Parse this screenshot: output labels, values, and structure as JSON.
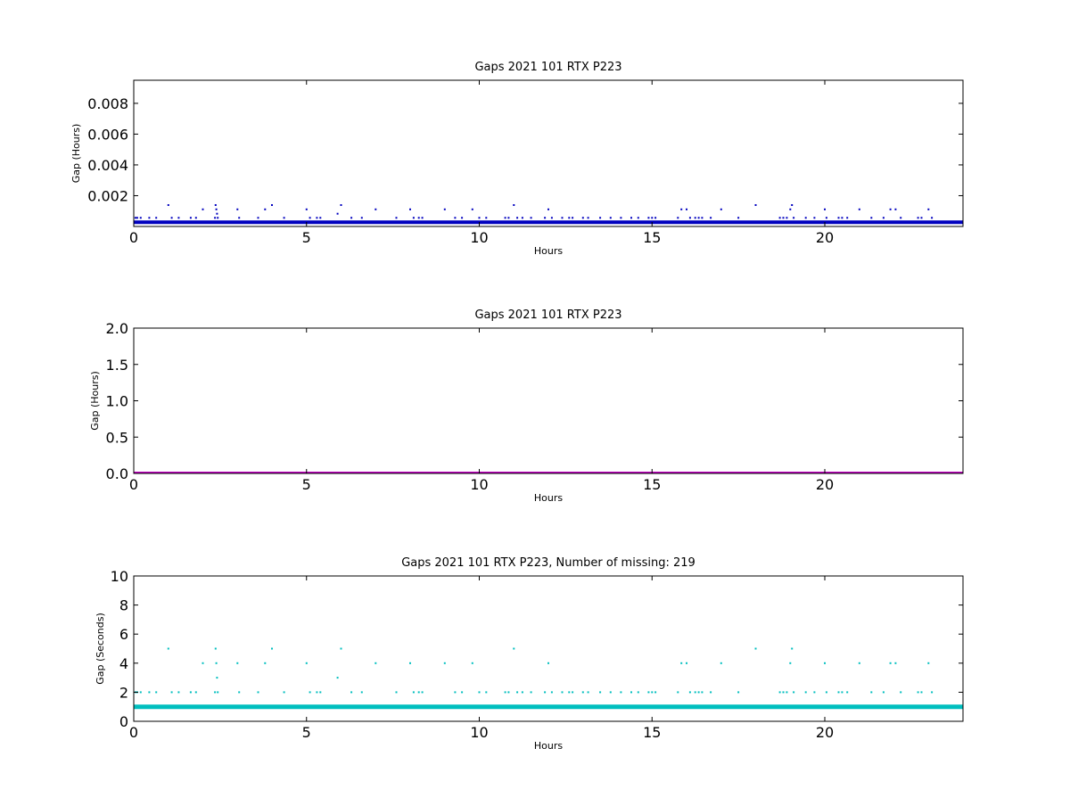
{
  "figure": {
    "background": "#ffffff"
  },
  "chart_data": [
    {
      "type": "scatter",
      "title": "Gaps 2021 101 RTX  P223",
      "xlabel": "Hours",
      "ylabel": "Gap (Hours)",
      "xlim": [
        0,
        24
      ],
      "ylim": [
        0,
        0.0095
      ],
      "xticks": [
        0,
        5,
        10,
        15,
        20
      ],
      "xtick_labels": [
        "0",
        "5",
        "10",
        "15",
        "20"
      ],
      "yticks": [
        0.002,
        0.004,
        0.006,
        0.008
      ],
      "ytick_labels": [
        "0.002",
        "0.004",
        "0.006",
        "0.008"
      ],
      "grid": false,
      "color": "#0000bf",
      "baseline": {
        "y": 0.000278,
        "x_range": [
          0,
          24
        ],
        "description": "dense band of regular 1-second gaps"
      },
      "series": [
        {
          "points": [
            [
              0.05,
              0.00056
            ],
            [
              0.1,
              0.00056
            ],
            [
              0.2,
              0.00056
            ],
            [
              0.45,
              0.00056
            ],
            [
              0.65,
              0.00056
            ],
            [
              1.0,
              0.00139
            ],
            [
              1.1,
              0.00056
            ],
            [
              1.3,
              0.00056
            ],
            [
              1.65,
              0.00056
            ],
            [
              1.8,
              0.00056
            ],
            [
              2.0,
              0.00111
            ],
            [
              2.35,
              0.00056
            ],
            [
              2.37,
              0.00139
            ],
            [
              2.39,
              0.00111
            ],
            [
              2.41,
              0.00083
            ],
            [
              2.43,
              0.00056
            ],
            [
              3.0,
              0.00111
            ],
            [
              3.05,
              0.00056
            ],
            [
              3.6,
              0.00056
            ],
            [
              3.8,
              0.00111
            ],
            [
              4.0,
              0.00139
            ],
            [
              4.35,
              0.00056
            ],
            [
              5.0,
              0.00111
            ],
            [
              5.1,
              0.00056
            ],
            [
              5.3,
              0.00056
            ],
            [
              5.4,
              0.00056
            ],
            [
              5.9,
              0.00083
            ],
            [
              6.0,
              0.00139
            ],
            [
              6.3,
              0.00056
            ],
            [
              6.6,
              0.00056
            ],
            [
              7.0,
              0.00111
            ],
            [
              7.6,
              0.00056
            ],
            [
              8.0,
              0.00111
            ],
            [
              8.1,
              0.00056
            ],
            [
              8.25,
              0.00056
            ],
            [
              8.35,
              0.00056
            ],
            [
              9.0,
              0.00111
            ],
            [
              9.3,
              0.00056
            ],
            [
              9.5,
              0.00056
            ],
            [
              9.8,
              0.00111
            ],
            [
              10.0,
              0.00056
            ],
            [
              10.2,
              0.00056
            ],
            [
              10.75,
              0.00056
            ],
            [
              10.85,
              0.00056
            ],
            [
              11.0,
              0.00139
            ],
            [
              11.1,
              0.00056
            ],
            [
              11.25,
              0.00056
            ],
            [
              11.5,
              0.00056
            ],
            [
              11.9,
              0.00056
            ],
            [
              12.0,
              0.00111
            ],
            [
              12.1,
              0.00056
            ],
            [
              12.4,
              0.00056
            ],
            [
              12.6,
              0.00056
            ],
            [
              12.7,
              0.00056
            ],
            [
              13.0,
              0.00056
            ],
            [
              13.15,
              0.00056
            ],
            [
              13.5,
              0.00056
            ],
            [
              13.8,
              0.00056
            ],
            [
              14.1,
              0.00056
            ],
            [
              14.4,
              0.00056
            ],
            [
              14.6,
              0.00056
            ],
            [
              14.9,
              0.00056
            ],
            [
              15.0,
              0.00056
            ],
            [
              15.1,
              0.00056
            ],
            [
              15.75,
              0.00056
            ],
            [
              15.85,
              0.00111
            ],
            [
              16.0,
              0.00111
            ],
            [
              16.1,
              0.00056
            ],
            [
              16.25,
              0.00056
            ],
            [
              16.35,
              0.00056
            ],
            [
              16.45,
              0.00056
            ],
            [
              16.7,
              0.00056
            ],
            [
              17.0,
              0.00111
            ],
            [
              17.5,
              0.00056
            ],
            [
              18.0,
              0.00139
            ],
            [
              18.7,
              0.00056
            ],
            [
              18.8,
              0.00056
            ],
            [
              18.9,
              0.00056
            ],
            [
              19.0,
              0.00111
            ],
            [
              19.05,
              0.00139
            ],
            [
              19.1,
              0.00056
            ],
            [
              19.45,
              0.00056
            ],
            [
              19.7,
              0.00056
            ],
            [
              20.0,
              0.00111
            ],
            [
              20.05,
              0.00056
            ],
            [
              20.4,
              0.00056
            ],
            [
              20.5,
              0.00056
            ],
            [
              20.65,
              0.00056
            ],
            [
              21.0,
              0.00111
            ],
            [
              21.35,
              0.00056
            ],
            [
              21.7,
              0.00056
            ],
            [
              21.9,
              0.00111
            ],
            [
              22.05,
              0.00111
            ],
            [
              22.2,
              0.00056
            ],
            [
              22.7,
              0.00056
            ],
            [
              22.8,
              0.00056
            ],
            [
              23.0,
              0.00111
            ],
            [
              23.1,
              0.00056
            ]
          ]
        }
      ]
    },
    {
      "type": "line",
      "title": "Gaps 2021 101 RTX  P223",
      "xlabel": "Hours",
      "ylabel": "Gap (Hours)",
      "xlim": [
        0,
        24
      ],
      "ylim": [
        0,
        2.0
      ],
      "xticks": [
        0,
        5,
        10,
        15,
        20
      ],
      "xtick_labels": [
        "0",
        "5",
        "10",
        "15",
        "20"
      ],
      "yticks": [
        0.0,
        0.5,
        1.0,
        1.5,
        2.0
      ],
      "ytick_labels": [
        "0.0",
        "0.5",
        "1.0",
        "1.5",
        "2.0"
      ],
      "grid": false,
      "color": "#bf00bf",
      "baseline": {
        "y": 0.0,
        "x_range": [
          0,
          24
        ],
        "description": "all gaps near zero"
      },
      "series": [
        {
          "points": []
        }
      ]
    },
    {
      "type": "scatter",
      "title": "Gaps 2021 101 RTX  P223, Number of missing: 219",
      "xlabel": "Hours",
      "ylabel": "Gap (Seconds)",
      "xlim": [
        0,
        24
      ],
      "ylim": [
        0,
        10
      ],
      "xticks": [
        0,
        5,
        10,
        15,
        20
      ],
      "xtick_labels": [
        "0",
        "5",
        "10",
        "15",
        "20"
      ],
      "yticks": [
        0,
        2,
        4,
        6,
        8,
        10
      ],
      "ytick_labels": [
        "0",
        "2",
        "4",
        "6",
        "8",
        "10"
      ],
      "grid": false,
      "color": "#00bfbf",
      "baseline": {
        "y": 1,
        "x_range": [
          0,
          24
        ],
        "description": "dense band of regular 1-second gaps"
      },
      "series": [
        {
          "points": [
            [
              0.05,
              2
            ],
            [
              0.1,
              2
            ],
            [
              0.2,
              2
            ],
            [
              0.45,
              2
            ],
            [
              0.65,
              2
            ],
            [
              1.0,
              5
            ],
            [
              1.1,
              2
            ],
            [
              1.3,
              2
            ],
            [
              1.65,
              2
            ],
            [
              1.8,
              2
            ],
            [
              2.0,
              4
            ],
            [
              2.35,
              2
            ],
            [
              2.37,
              5
            ],
            [
              2.39,
              4
            ],
            [
              2.41,
              3
            ],
            [
              2.43,
              2
            ],
            [
              3.0,
              4
            ],
            [
              3.05,
              2
            ],
            [
              3.6,
              2
            ],
            [
              3.8,
              4
            ],
            [
              4.0,
              5
            ],
            [
              4.35,
              2
            ],
            [
              5.0,
              4
            ],
            [
              5.1,
              2
            ],
            [
              5.3,
              2
            ],
            [
              5.4,
              2
            ],
            [
              5.9,
              3
            ],
            [
              6.0,
              5
            ],
            [
              6.3,
              2
            ],
            [
              6.6,
              2
            ],
            [
              7.0,
              4
            ],
            [
              7.6,
              2
            ],
            [
              8.0,
              4
            ],
            [
              8.1,
              2
            ],
            [
              8.25,
              2
            ],
            [
              8.35,
              2
            ],
            [
              9.0,
              4
            ],
            [
              9.3,
              2
            ],
            [
              9.5,
              2
            ],
            [
              9.8,
              4
            ],
            [
              10.0,
              2
            ],
            [
              10.2,
              2
            ],
            [
              10.75,
              2
            ],
            [
              10.85,
              2
            ],
            [
              11.0,
              5
            ],
            [
              11.1,
              2
            ],
            [
              11.25,
              2
            ],
            [
              11.5,
              2
            ],
            [
              11.9,
              2
            ],
            [
              12.0,
              4
            ],
            [
              12.1,
              2
            ],
            [
              12.4,
              2
            ],
            [
              12.6,
              2
            ],
            [
              12.7,
              2
            ],
            [
              13.0,
              2
            ],
            [
              13.15,
              2
            ],
            [
              13.5,
              2
            ],
            [
              13.8,
              2
            ],
            [
              14.1,
              2
            ],
            [
              14.4,
              2
            ],
            [
              14.6,
              2
            ],
            [
              14.9,
              2
            ],
            [
              15.0,
              2
            ],
            [
              15.1,
              2
            ],
            [
              15.75,
              2
            ],
            [
              15.85,
              4
            ],
            [
              16.0,
              4
            ],
            [
              16.1,
              2
            ],
            [
              16.25,
              2
            ],
            [
              16.35,
              2
            ],
            [
              16.45,
              2
            ],
            [
              16.7,
              2
            ],
            [
              17.0,
              4
            ],
            [
              17.5,
              2
            ],
            [
              18.0,
              5
            ],
            [
              18.7,
              2
            ],
            [
              18.8,
              2
            ],
            [
              18.9,
              2
            ],
            [
              19.0,
              4
            ],
            [
              19.05,
              5
            ],
            [
              19.1,
              2
            ],
            [
              19.45,
              2
            ],
            [
              19.7,
              2
            ],
            [
              20.0,
              4
            ],
            [
              20.05,
              2
            ],
            [
              20.4,
              2
            ],
            [
              20.5,
              2
            ],
            [
              20.65,
              2
            ],
            [
              21.0,
              4
            ],
            [
              21.35,
              2
            ],
            [
              21.7,
              2
            ],
            [
              21.9,
              4
            ],
            [
              22.05,
              4
            ],
            [
              22.2,
              2
            ],
            [
              22.7,
              2
            ],
            [
              22.8,
              2
            ],
            [
              23.0,
              4
            ],
            [
              23.1,
              2
            ]
          ]
        }
      ]
    }
  ]
}
